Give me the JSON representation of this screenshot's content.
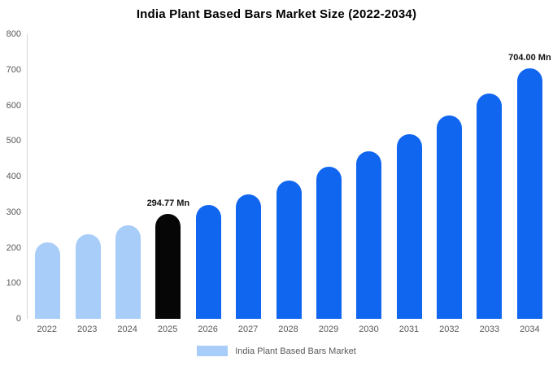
{
  "chart_data": {
    "type": "bar",
    "title": "India Plant Based Bars Market Size (2022-2034)",
    "categories": [
      "2022",
      "2023",
      "2024",
      "2025",
      "2026",
      "2027",
      "2028",
      "2029",
      "2030",
      "2031",
      "2032",
      "2033",
      "2034"
    ],
    "values": [
      215,
      237,
      262,
      294.77,
      320,
      350,
      388,
      428,
      470,
      520,
      572,
      634,
      704
    ],
    "unit": "Mn",
    "xlabel": "",
    "ylabel": "",
    "ylim": [
      0,
      800
    ],
    "yticks": [
      0,
      100,
      200,
      300,
      400,
      500,
      600,
      700,
      800
    ],
    "grid": false,
    "legend_label": "India Plant Based Bars Market",
    "legend_position": "bottom",
    "annotations": [
      {
        "category": "2025",
        "text": "294.77 Mn"
      },
      {
        "category": "2034",
        "text": "704.00 Mn"
      }
    ],
    "colors": {
      "historical": "#a8cdf8",
      "highlight": "#060606",
      "forecast": "#1166f0",
      "bar_colors": [
        "#a8cdf8",
        "#a8cdf8",
        "#a8cdf8",
        "#060606",
        "#1166f0",
        "#1166f0",
        "#1166f0",
        "#1166f0",
        "#1166f0",
        "#1166f0",
        "#1166f0",
        "#1166f0",
        "#1166f0"
      ],
      "axis_text": "#595959",
      "axis_line": "#d6d6d6"
    }
  }
}
